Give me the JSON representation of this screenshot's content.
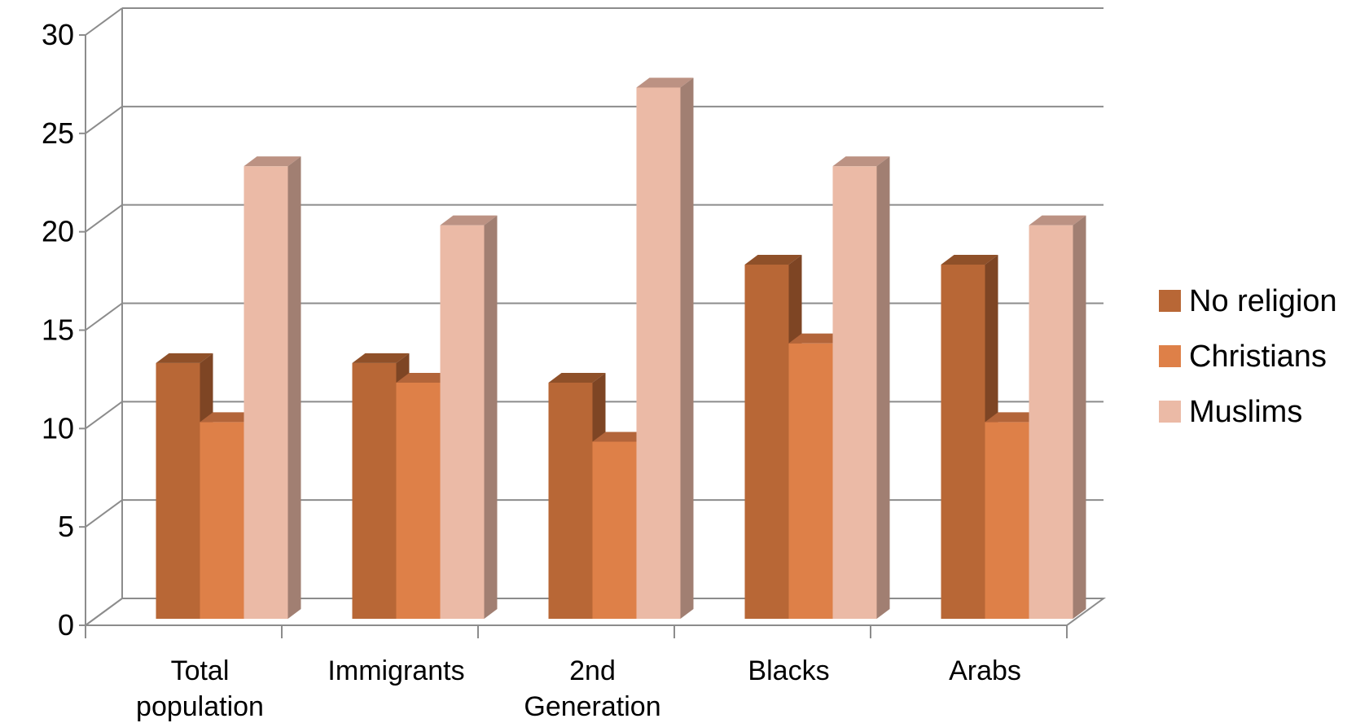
{
  "chart_data": {
    "type": "bar",
    "title": "",
    "xlabel": "",
    "ylabel": "",
    "categories": [
      [
        "Total",
        "population"
      ],
      [
        "Immigrants"
      ],
      [
        "2nd",
        "Generation"
      ],
      [
        "Blacks"
      ],
      [
        "Arabs"
      ]
    ],
    "series": [
      {
        "name": "No religion",
        "values": [
          13,
          13,
          12,
          18,
          18
        ],
        "color": "#b86736",
        "side_color": "#7e4524",
        "top_color": "#8f5029"
      },
      {
        "name": "Christians",
        "values": [
          10,
          12,
          9,
          14,
          10
        ],
        "color": "#de8048",
        "side_color": "#9c5a33",
        "top_color": "#b3653a"
      },
      {
        "name": "Muslims",
        "values": [
          23,
          20,
          27,
          23,
          20
        ],
        "color": "#ebbaa6",
        "side_color": "#a17f72",
        "top_color": "#bc9283"
      }
    ],
    "yticks": [
      "0",
      "5",
      "10",
      "15",
      "20",
      "25",
      "30"
    ],
    "ylim": [
      0,
      30
    ],
    "grid": true,
    "legend": "right"
  }
}
